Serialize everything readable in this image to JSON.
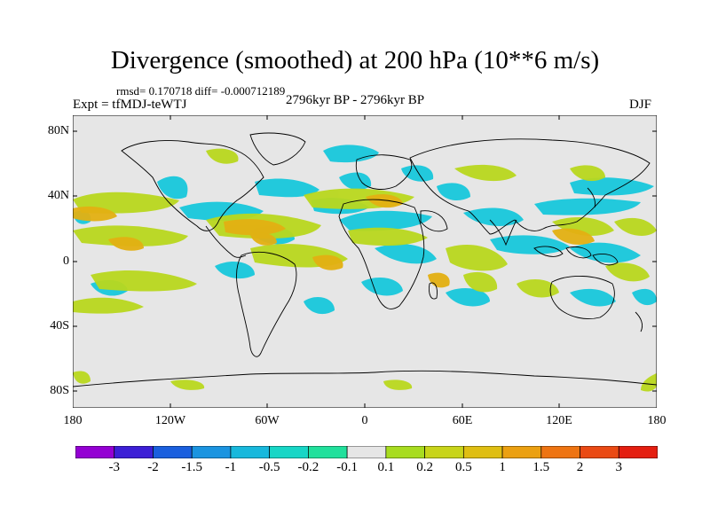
{
  "title": "Divergence (smoothed) at 200 hPa (10**6 m/s)",
  "stats": "rmsd= 0.170718 diff= -0.000712189",
  "expt": "Expt = tfMDJ-teWTJ",
  "period": "2796kyr BP - 2796kyr BP",
  "season": "DJF",
  "lat_labels": [
    "80N",
    "40N",
    "0",
    "40S",
    "80S"
  ],
  "lon_labels": [
    "180",
    "120W",
    "60W",
    "0",
    "60E",
    "120E",
    "180"
  ],
  "colorbar": {
    "colors": [
      "#9400d3",
      "#3c1fd6",
      "#1a5fde",
      "#1b94e0",
      "#18b8dc",
      "#17d6c6",
      "#21e09c",
      "#e6e6e6",
      "#a8dc20",
      "#c8d41a",
      "#dfbe12",
      "#eba011",
      "#ee7412",
      "#ea4a14",
      "#e41e10"
    ],
    "labels": [
      "-3",
      "-2",
      "-1.5",
      "-1",
      "-0.5",
      "-0.2",
      "-0.1",
      "0.1",
      "0.2",
      "0.5",
      "1",
      "1.5",
      "2",
      "3"
    ]
  },
  "field": {
    "background": "#e6e6e6",
    "coastline_color": "#000000"
  }
}
